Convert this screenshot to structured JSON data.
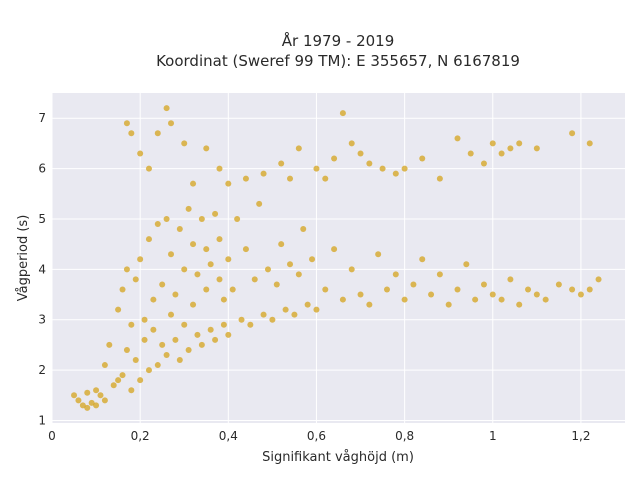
{
  "chart_data": {
    "type": "scatter",
    "title": "År 1979 - 2019",
    "subtitle": "Koordinat (Sweref 99 TM): E 355657, N 6167819",
    "xlabel": "Signifikant våghöjd (m)",
    "ylabel": "Vågperiod (s)",
    "xlim": [
      0,
      1.3
    ],
    "ylim": [
      0.95,
      7.5
    ],
    "x_ticks": [
      0,
      0.2,
      0.4,
      0.6,
      0.8,
      1,
      1.2
    ],
    "x_tick_labels": [
      "0",
      "0,2",
      "0,4",
      "0,6",
      "0,8",
      "1",
      "1,2"
    ],
    "y_ticks": [
      1,
      2,
      3,
      4,
      5,
      6,
      7
    ],
    "y_tick_labels": [
      "1",
      "2",
      "3",
      "4",
      "5",
      "6",
      "7"
    ],
    "grid": true,
    "marker_color": "#d4a31c",
    "series": [
      {
        "x": [
          0.05,
          0.06,
          0.07,
          0.08,
          0.08,
          0.09,
          0.1,
          0.1,
          0.11,
          0.12,
          0.12,
          0.13,
          0.14,
          0.15,
          0.15,
          0.16,
          0.16,
          0.17,
          0.17,
          0.18,
          0.18,
          0.19,
          0.19,
          0.2,
          0.2,
          0.21,
          0.21,
          0.22,
          0.22,
          0.23,
          0.23,
          0.24,
          0.24,
          0.25,
          0.25,
          0.26,
          0.26,
          0.27,
          0.27,
          0.28,
          0.28,
          0.29,
          0.29,
          0.3,
          0.3,
          0.31,
          0.31,
          0.32,
          0.32,
          0.33,
          0.33,
          0.34,
          0.34,
          0.35,
          0.35,
          0.36,
          0.36,
          0.37,
          0.37,
          0.38,
          0.38,
          0.39,
          0.39,
          0.4,
          0.4,
          0.41,
          0.42,
          0.43,
          0.44,
          0.45,
          0.46,
          0.47,
          0.48,
          0.49,
          0.5,
          0.51,
          0.52,
          0.53,
          0.54,
          0.55,
          0.56,
          0.57,
          0.58,
          0.59,
          0.6,
          0.62,
          0.64,
          0.66,
          0.68,
          0.7,
          0.72,
          0.74,
          0.76,
          0.78,
          0.8,
          0.82,
          0.84,
          0.86,
          0.88,
          0.9,
          0.92,
          0.94,
          0.96,
          0.98,
          1.0,
          1.02,
          1.04,
          1.06,
          1.08,
          1.1,
          1.12,
          1.15,
          1.18,
          1.2,
          1.22,
          1.24
        ],
        "y": [
          1.5,
          1.4,
          1.3,
          1.55,
          1.25,
          1.35,
          1.6,
          1.3,
          1.5,
          2.1,
          1.4,
          2.5,
          1.7,
          3.2,
          1.8,
          3.6,
          1.9,
          4.0,
          2.4,
          2.9,
          1.6,
          3.8,
          2.2,
          4.2,
          1.8,
          3.0,
          2.6,
          4.6,
          2.0,
          3.4,
          2.8,
          4.9,
          2.1,
          3.7,
          2.5,
          5.0,
          2.3,
          3.1,
          4.3,
          2.6,
          3.5,
          4.8,
          2.2,
          4.0,
          2.9,
          5.2,
          2.4,
          3.3,
          4.5,
          2.7,
          3.9,
          5.0,
          2.5,
          3.6,
          4.4,
          2.8,
          4.1,
          5.1,
          2.6,
          3.8,
          4.6,
          2.9,
          3.4,
          4.2,
          2.7,
          3.6,
          5.0,
          3.0,
          4.4,
          2.9,
          3.8,
          5.3,
          3.1,
          4.0,
          3.0,
          3.7,
          4.5,
          3.2,
          4.1,
          3.1,
          3.9,
          4.8,
          3.3,
          4.2,
          3.2,
          3.6,
          4.4,
          3.4,
          4.0,
          3.5,
          3.3,
          4.3,
          3.6,
          3.9,
          3.4,
          3.7,
          4.2,
          3.5,
          3.9,
          3.3,
          3.6,
          4.1,
          3.4,
          3.7,
          3.5,
          3.4,
          3.8,
          3.3,
          3.6,
          3.5,
          3.4,
          3.7,
          3.6,
          3.5,
          3.6,
          3.8
        ]
      },
      {
        "x": [
          0.17,
          0.18,
          0.2,
          0.22,
          0.24,
          0.26,
          0.27,
          0.3,
          0.32,
          0.35,
          0.38,
          0.4,
          0.44,
          0.48,
          0.52,
          0.54,
          0.56,
          0.6,
          0.62,
          0.64,
          0.66,
          0.68,
          0.7,
          0.72,
          0.75,
          0.78,
          0.8,
          0.84,
          0.88,
          0.92,
          0.95,
          0.98,
          1.0,
          1.02,
          1.04,
          1.06,
          1.1,
          1.18,
          1.22
        ],
        "y": [
          6.9,
          6.7,
          6.3,
          6.0,
          6.7,
          7.2,
          6.9,
          6.5,
          5.7,
          6.4,
          6.0,
          5.7,
          5.8,
          5.9,
          6.1,
          5.8,
          6.4,
          6.0,
          5.8,
          6.2,
          7.1,
          6.5,
          6.3,
          6.1,
          6.0,
          5.9,
          6.0,
          6.2,
          5.8,
          6.6,
          6.3,
          6.1,
          6.5,
          6.3,
          6.4,
          6.5,
          6.4,
          6.7,
          6.5
        ]
      }
    ]
  }
}
